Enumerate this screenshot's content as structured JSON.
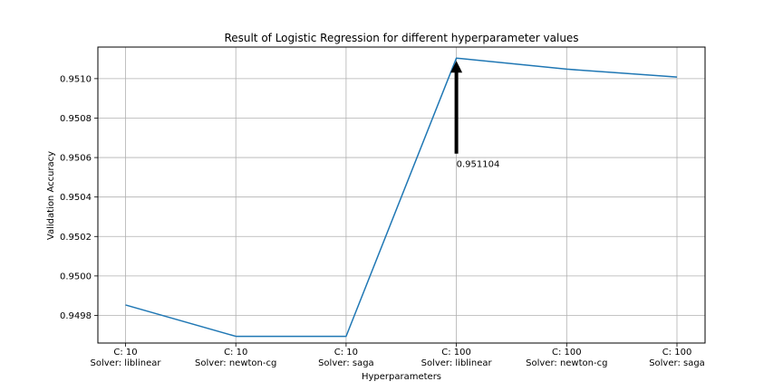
{
  "chart_data": {
    "type": "line",
    "title": "Result of Logistic Regression for different hyperparameter values",
    "xlabel": "Hyperparameters",
    "ylabel": "Validation Accuracy",
    "categories": [
      [
        "C: 10",
        "Solver: liblinear"
      ],
      [
        "C: 10",
        "Solver: newton-cg"
      ],
      [
        "C: 10",
        "Solver: saga"
      ],
      [
        "C: 100",
        "Solver: liblinear"
      ],
      [
        "C: 100",
        "Solver: newton-cg"
      ],
      [
        "C: 100",
        "Solver: saga"
      ]
    ],
    "values": [
      0.949853,
      0.949694,
      0.949694,
      0.951104,
      0.951048,
      0.951008
    ],
    "ylim": [
      0.94966,
      0.95116
    ],
    "yticks": [
      0.9498,
      0.95,
      0.9502,
      0.9504,
      0.9506,
      0.9508,
      0.951
    ],
    "ytick_labels": [
      "0.9498",
      "0.9500",
      "0.9502",
      "0.9504",
      "0.9506",
      "0.9508",
      "0.9510"
    ],
    "grid": true,
    "line_color": "#1f77b4",
    "annotation": {
      "text": "0.951104",
      "point_index": 3,
      "value": 0.951104,
      "text_y": 0.95062,
      "arrow_color": "#000000"
    }
  }
}
